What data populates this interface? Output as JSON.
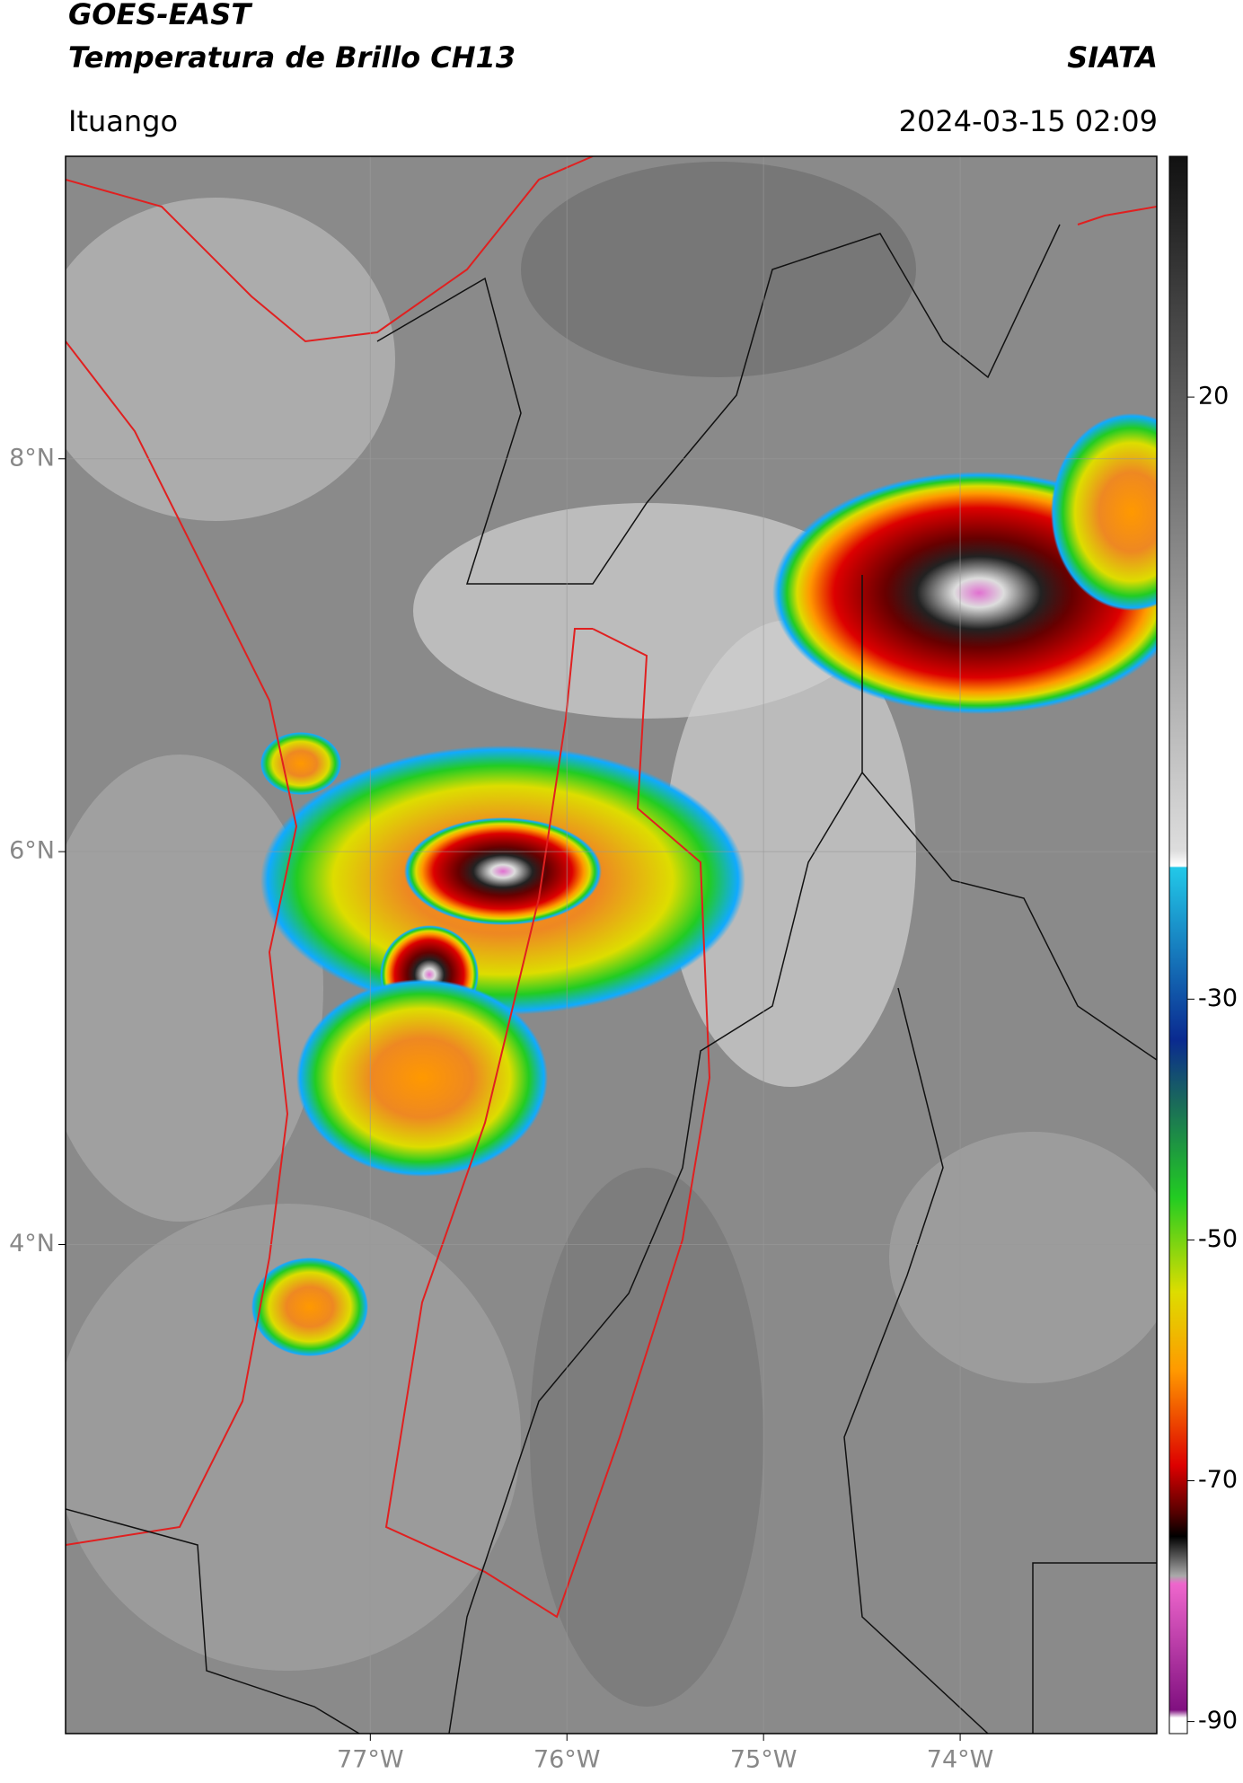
{
  "header": {
    "title": "GOES-EAST",
    "subtitle": "Temperatura de Brillo CH13",
    "source": "SIATA",
    "location": "Ituango",
    "datetime": "2024-03-15 02:09"
  },
  "map": {
    "xlim": [
      -78.55,
      -73.0
    ],
    "ylim": [
      1.51,
      9.54
    ],
    "xticks": [
      {
        "value": -77,
        "label": "77°W"
      },
      {
        "value": -76,
        "label": "76°W"
      },
      {
        "value": -75,
        "label": "75°W"
      },
      {
        "value": -74,
        "label": "74°W"
      }
    ],
    "yticks": [
      {
        "value": 8,
        "label": "8°N"
      },
      {
        "value": 6,
        "label": "6°N"
      },
      {
        "value": 4,
        "label": "4°N"
      }
    ],
    "grid": true
  },
  "colorbar": {
    "lim": [
      -91,
      40
    ],
    "ticks": [
      20,
      -30,
      -50,
      -70,
      -90
    ]
  }
}
